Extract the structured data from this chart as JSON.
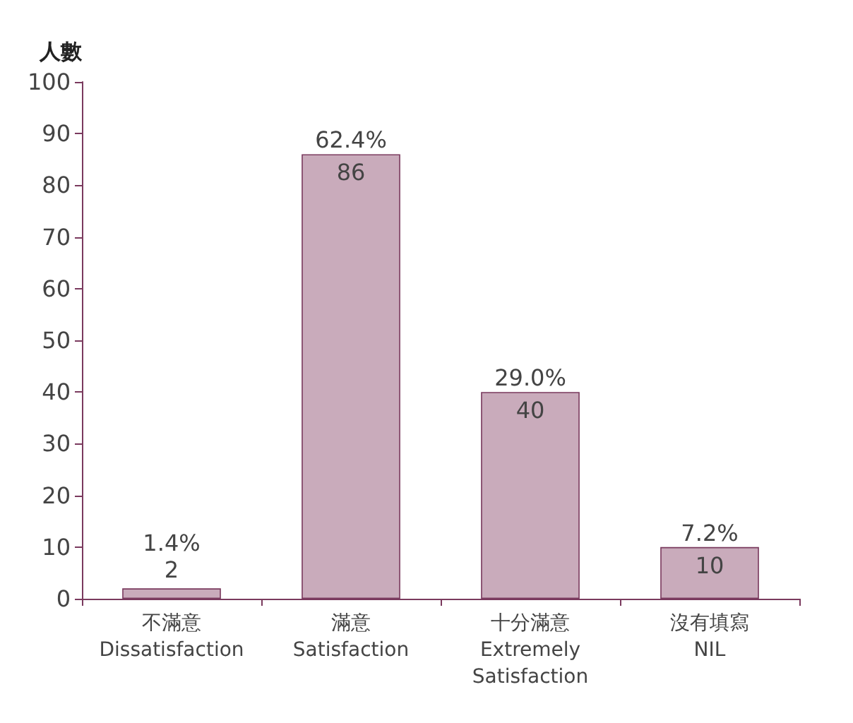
{
  "chart_data": {
    "type": "bar",
    "ylabel": "人數",
    "categories": [
      "不滿意\nDissatisfaction",
      "滿意\nSatisfaction",
      "十分滿意\nExtremely\nSatisfaction",
      "沒有填寫\nNIL"
    ],
    "values": [
      2,
      86,
      40,
      10
    ],
    "data_labels": true,
    "annotations": [
      {
        "text": "1.4%",
        "x": "不滿意\nDissatisfaction",
        "y": 2
      },
      {
        "text": "62.4%",
        "x": "滿意\nSatisfaction",
        "y": 86
      },
      {
        "text": "29.0%",
        "x": "十分滿意\nExtremely\nSatisfaction",
        "y": 40
      },
      {
        "text": "7.2%",
        "x": "沒有填寫\nNIL",
        "y": 10
      }
    ],
    "color": "#c9abbb",
    "ylim": [
      0,
      100
    ],
    "yticks": [
      0,
      10,
      20,
      30,
      40,
      50,
      60,
      70,
      80,
      90,
      100
    ],
    "grid": false
  }
}
